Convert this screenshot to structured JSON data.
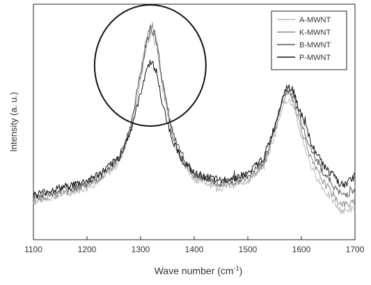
{
  "chart_data": {
    "type": "line",
    "title": "",
    "xlabel": "Wave number (cm",
    "xlabel_sup": "-1",
    "xlabel_close": ")",
    "ylabel": "Intensity (a. u.)",
    "xlim": [
      1100,
      1700
    ],
    "ylim": [
      0,
      100
    ],
    "xticks": [
      "1100",
      "1200",
      "1300",
      "1400",
      "1500",
      "1600",
      "1700"
    ],
    "grid": false,
    "legend_position": "top-right",
    "annotation": "circle around ~1320 cm-1 peak",
    "series": [
      {
        "name": "A-MWNT",
        "color": "#b8b8b8",
        "x": [
          1100,
          1150,
          1200,
          1230,
          1260,
          1280,
          1300,
          1310,
          1320,
          1330,
          1340,
          1360,
          1380,
          1400,
          1450,
          1500,
          1530,
          1550,
          1565,
          1575,
          1585,
          1600,
          1620,
          1640,
          1660,
          1670,
          1680,
          1690,
          1700
        ],
        "values": [
          16,
          19,
          22,
          26,
          33,
          45,
          68,
          81,
          88,
          82,
          66,
          43,
          32,
          26,
          22,
          25,
          31,
          44,
          57,
          60,
          56,
          44,
          30,
          22,
          16,
          13,
          12,
          13,
          13
        ]
      },
      {
        "name": "K-MWNT",
        "color": "#8c8c8c",
        "x": [
          1100,
          1150,
          1200,
          1230,
          1260,
          1280,
          1300,
          1310,
          1320,
          1330,
          1340,
          1360,
          1380,
          1400,
          1450,
          1500,
          1530,
          1550,
          1565,
          1575,
          1585,
          1600,
          1620,
          1640,
          1660,
          1670,
          1680,
          1690,
          1700
        ],
        "values": [
          17,
          20,
          23,
          27,
          34,
          46,
          71,
          84,
          92,
          85,
          68,
          44,
          33,
          27,
          23,
          26,
          32,
          46,
          59,
          63,
          59,
          47,
          33,
          25,
          19,
          16,
          15,
          15,
          16
        ]
      },
      {
        "name": "B-MWNT",
        "color": "#5a5a5a",
        "x": [
          1100,
          1150,
          1200,
          1230,
          1260,
          1280,
          1300,
          1310,
          1320,
          1330,
          1340,
          1360,
          1380,
          1400,
          1450,
          1500,
          1530,
          1550,
          1565,
          1575,
          1585,
          1600,
          1620,
          1640,
          1660,
          1670,
          1680,
          1690,
          1700
        ],
        "values": [
          18,
          21,
          24,
          28,
          35,
          47,
          70,
          83,
          90,
          84,
          68,
          45,
          34,
          28,
          24,
          27,
          33,
          47,
          60,
          64,
          61,
          50,
          37,
          29,
          23,
          20,
          19,
          20,
          21
        ]
      },
      {
        "name": "P-MWNT",
        "color": "#111111",
        "x": [
          1100,
          1150,
          1200,
          1230,
          1260,
          1280,
          1300,
          1310,
          1320,
          1330,
          1340,
          1360,
          1380,
          1400,
          1450,
          1500,
          1530,
          1550,
          1565,
          1575,
          1585,
          1600,
          1620,
          1640,
          1660,
          1670,
          1680,
          1690,
          1700
        ],
        "values": [
          19,
          22,
          25,
          29,
          35,
          45,
          62,
          72,
          76,
          71,
          58,
          42,
          33,
          28,
          25,
          28,
          35,
          48,
          61,
          66,
          63,
          53,
          40,
          32,
          27,
          24,
          23,
          25,
          27
        ]
      }
    ]
  }
}
